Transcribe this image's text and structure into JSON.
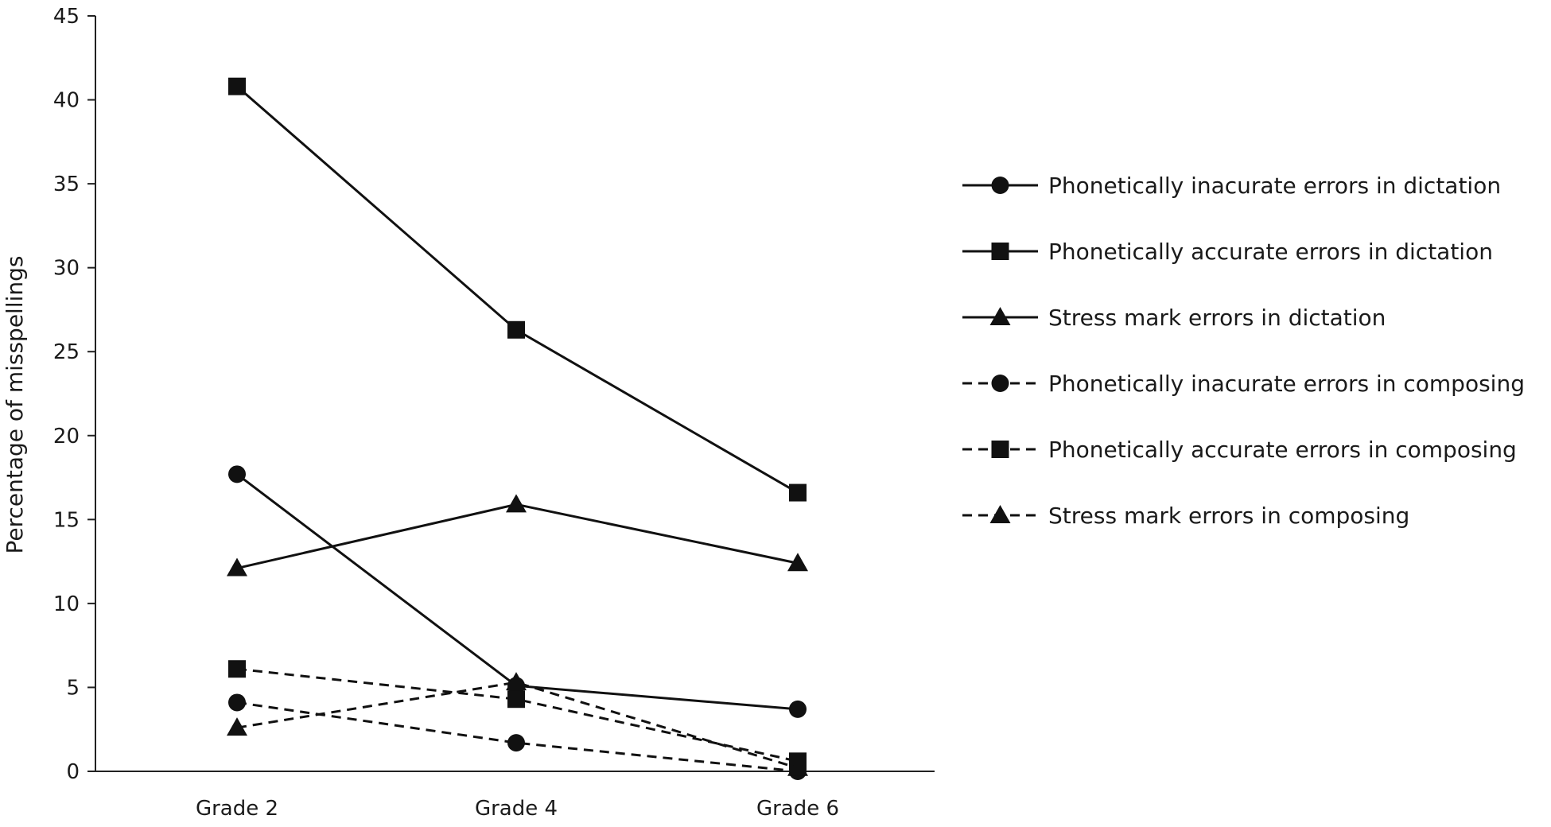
{
  "chart_data": {
    "type": "line",
    "title": "",
    "xlabel": "",
    "ylabel": "Percentage of misspellings",
    "categories": [
      "Grade 2",
      "Grade 4",
      "Grade 6"
    ],
    "ylim": [
      0,
      45
    ],
    "yticks": [
      0,
      5,
      10,
      15,
      20,
      25,
      30,
      35,
      40,
      45
    ],
    "grid": false,
    "legend_position": "right",
    "series": [
      {
        "name": "Phonetically inacurate errors in dictation",
        "values": [
          17.7,
          5.1,
          3.7
        ],
        "marker": "circle",
        "line": "solid"
      },
      {
        "name": "Phonetically accurate errors in dictation",
        "values": [
          40.8,
          26.3,
          16.6
        ],
        "marker": "square",
        "line": "solid"
      },
      {
        "name": "Stress mark errors in dictation",
        "values": [
          12.1,
          15.9,
          12.4
        ],
        "marker": "triangle",
        "line": "solid"
      },
      {
        "name": "Phonetically inacurate errors in composing",
        "values": [
          4.1,
          1.7,
          0.0
        ],
        "marker": "circle",
        "line": "dashed"
      },
      {
        "name": "Phonetically accurate errors in composing",
        "values": [
          6.1,
          4.3,
          0.6
        ],
        "marker": "square",
        "line": "dashed"
      },
      {
        "name": "Stress mark errors in composing",
        "values": [
          2.6,
          5.3,
          0.2
        ],
        "marker": "triangle",
        "line": "dashed"
      }
    ],
    "colors": {
      "line": "#111111",
      "axis": "#222222"
    }
  }
}
